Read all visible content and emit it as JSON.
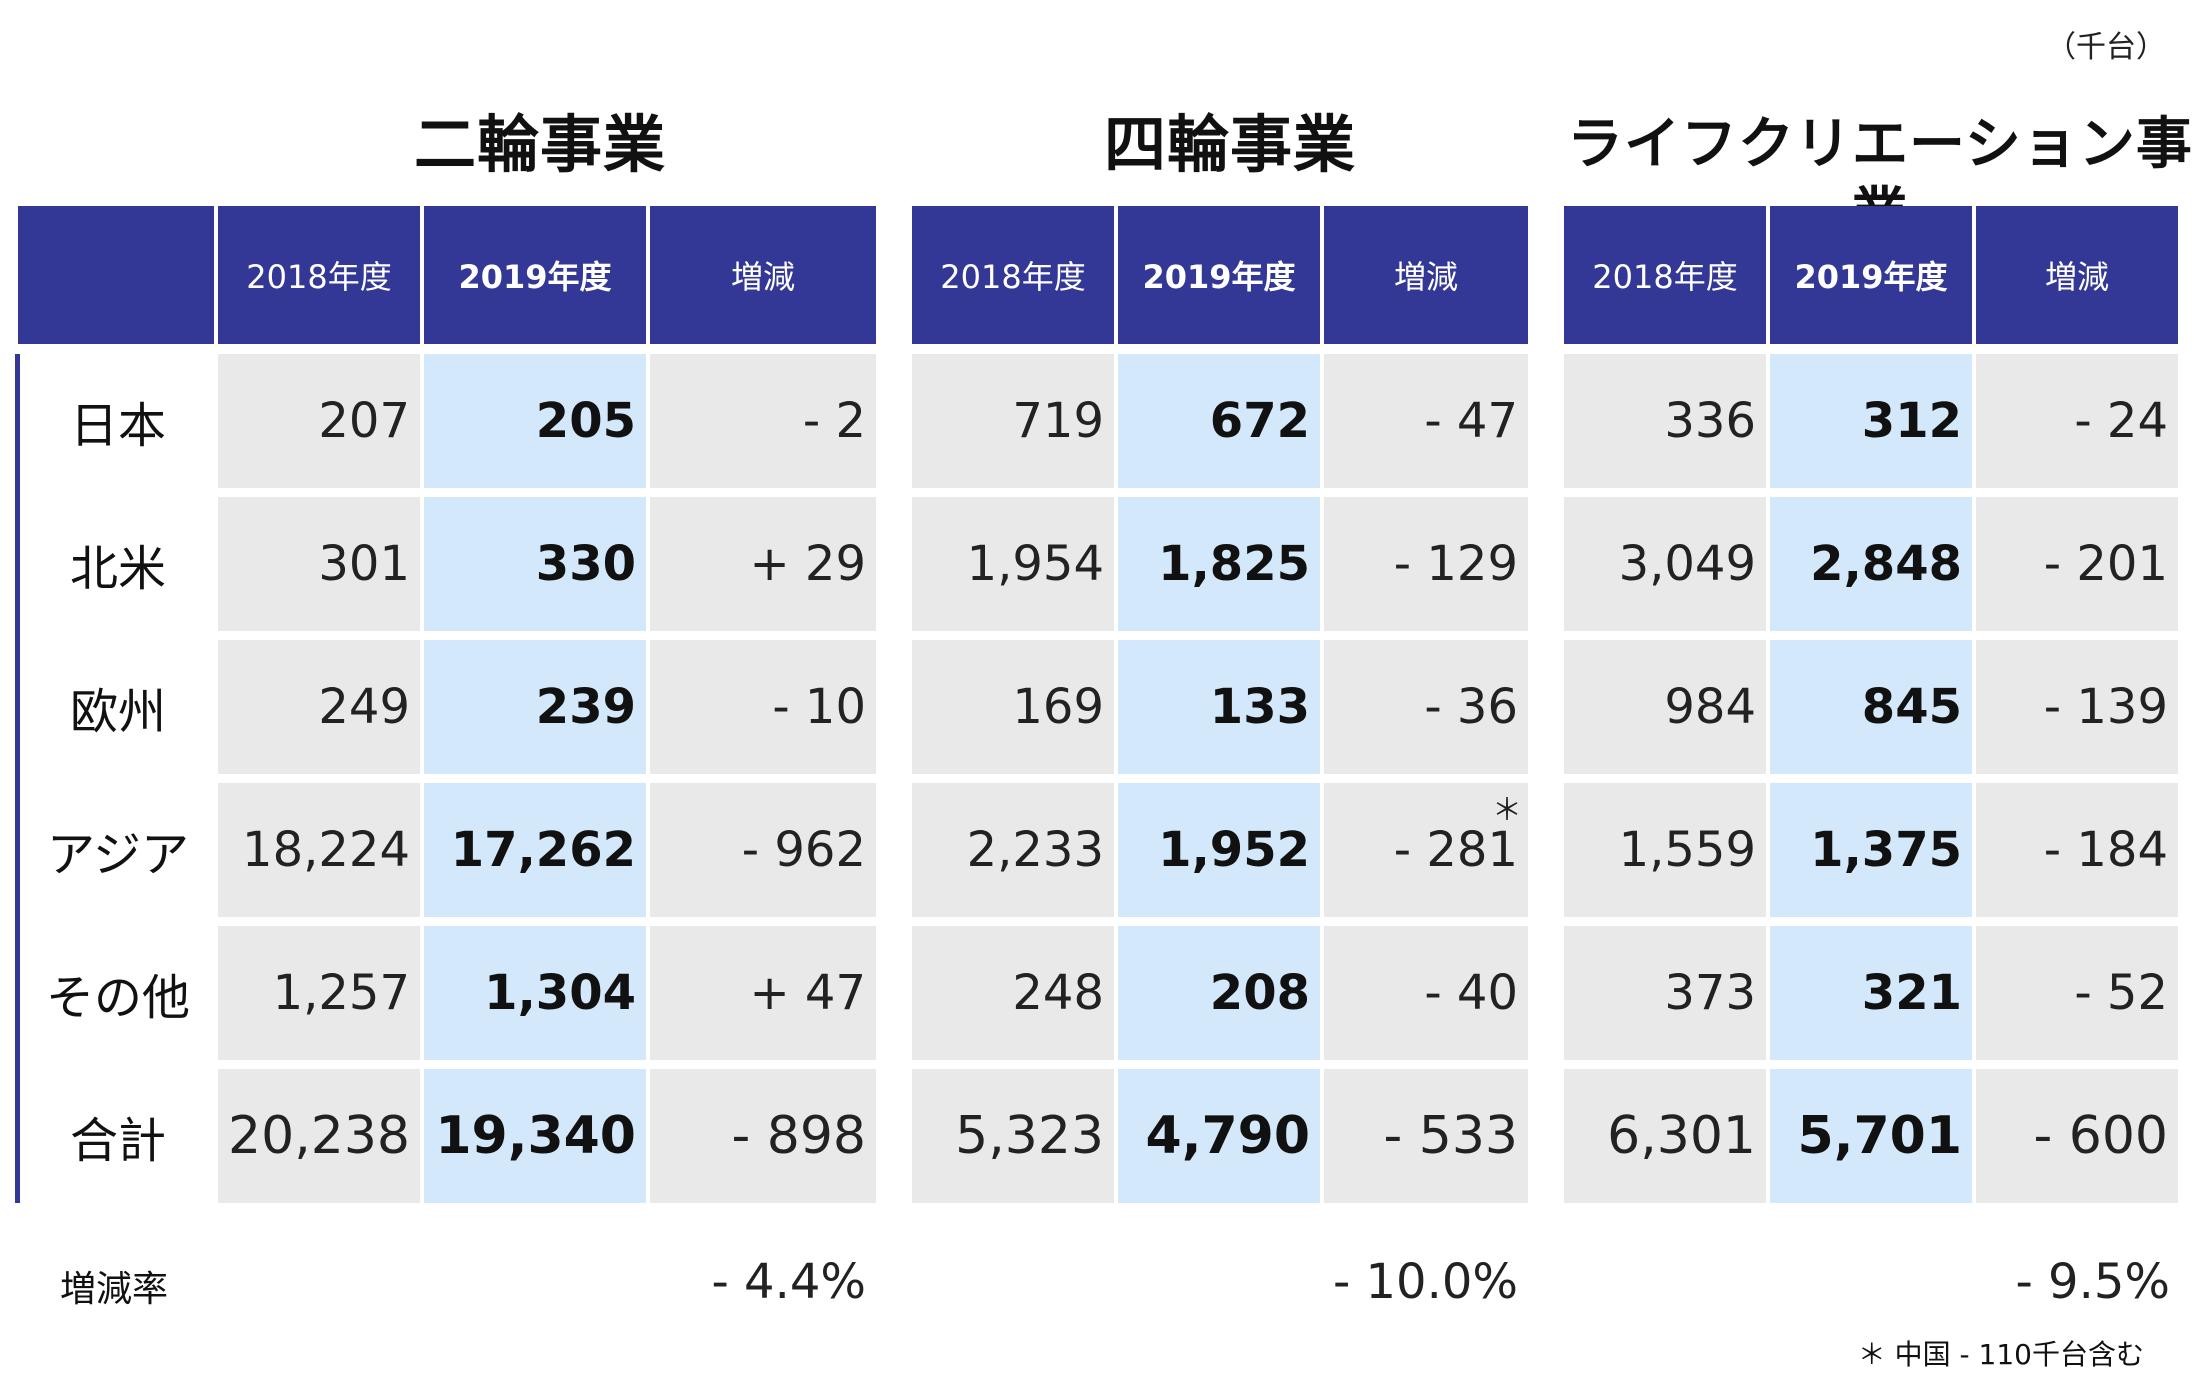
{
  "unit": "（千台）",
  "headers": {
    "fy2018": "2018年度",
    "fy2019": "2019年度",
    "change": "増減"
  },
  "rate_label": "増減率",
  "footnote": "＊ 中国 - 110千台含む",
  "row_labels": [
    "日本",
    "北米",
    "欧州",
    "アジア",
    "その他",
    "合計"
  ],
  "sections": [
    {
      "title": "二輪事業",
      "rows": [
        {
          "fy2018": "207",
          "fy2019": "205",
          "change": "- 2"
        },
        {
          "fy2018": "301",
          "fy2019": "330",
          "change": "+ 29"
        },
        {
          "fy2018": "249",
          "fy2019": "239",
          "change": "- 10"
        },
        {
          "fy2018": "18,224",
          "fy2019": "17,262",
          "change": "- 962"
        },
        {
          "fy2018": "1,257",
          "fy2019": "1,304",
          "change": "+ 47"
        },
        {
          "fy2018": "20,238",
          "fy2019": "19,340",
          "change": "- 898"
        }
      ],
      "rate": "- 4.4%"
    },
    {
      "title": "四輪事業",
      "rows": [
        {
          "fy2018": "719",
          "fy2019": "672",
          "change": "- 47"
        },
        {
          "fy2018": "1,954",
          "fy2019": "1,825",
          "change": "- 129"
        },
        {
          "fy2018": "169",
          "fy2019": "133",
          "change": "- 36"
        },
        {
          "fy2018": "2,233",
          "fy2019": "1,952",
          "change": "- 281",
          "mark": "＊"
        },
        {
          "fy2018": "248",
          "fy2019": "208",
          "change": "- 40"
        },
        {
          "fy2018": "5,323",
          "fy2019": "4,790",
          "change": "- 533"
        }
      ],
      "rate": "- 10.0%"
    },
    {
      "title": "ライフクリエーション事業",
      "rows": [
        {
          "fy2018": "336",
          "fy2019": "312",
          "change": "- 24"
        },
        {
          "fy2018": "3,049",
          "fy2019": "2,848",
          "change": "- 201"
        },
        {
          "fy2018": "984",
          "fy2019": "845",
          "change": "- 139"
        },
        {
          "fy2018": "1,559",
          "fy2019": "1,375",
          "change": "- 184"
        },
        {
          "fy2018": "373",
          "fy2019": "321",
          "change": "- 52"
        },
        {
          "fy2018": "6,301",
          "fy2019": "5,701",
          "change": "- 600"
        }
      ],
      "rate": "- 9.5%"
    }
  ]
}
